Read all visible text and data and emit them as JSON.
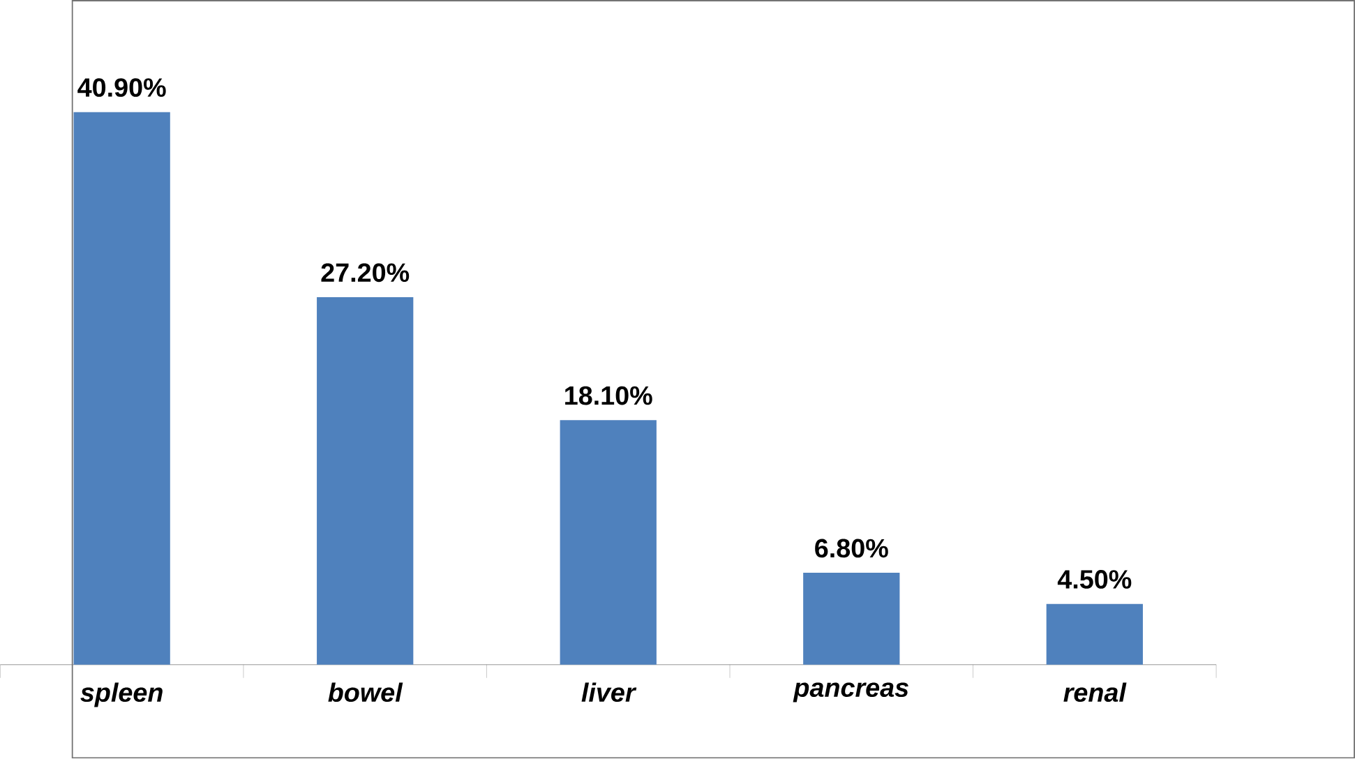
{
  "chart_data": {
    "type": "bar",
    "categories": [
      "spleen",
      "bowel",
      "liver",
      "pancreas",
      "renal"
    ],
    "values": [
      40.9,
      27.2,
      18.1,
      6.8,
      4.5
    ],
    "value_labels": [
      "40.90%",
      "27.20%",
      "18.10%",
      "6.80%",
      "4.50%"
    ],
    "color": "#4f81bd"
  }
}
